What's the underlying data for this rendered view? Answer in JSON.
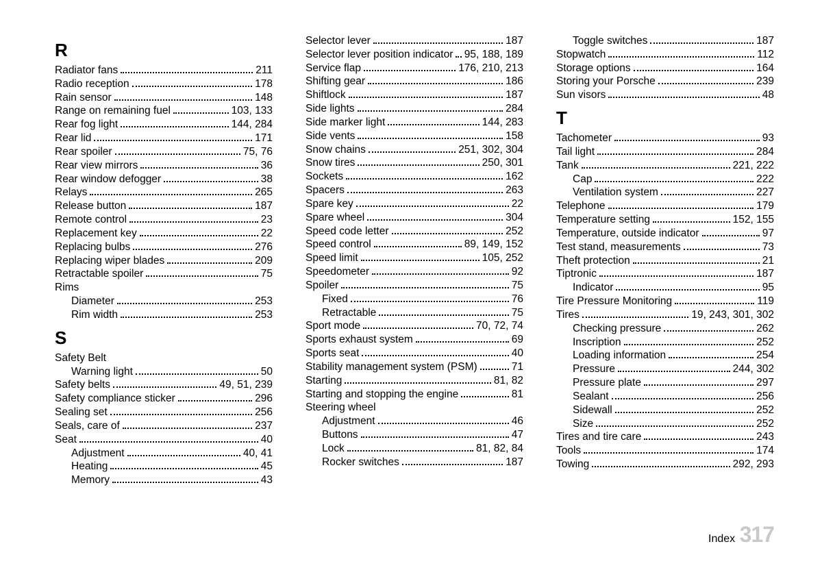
{
  "page": {
    "footer_label": "Index",
    "page_number": "317"
  },
  "columns": [
    {
      "blocks": [
        {
          "type": "letter",
          "text": "R"
        },
        {
          "type": "entry",
          "label": "Radiator fans",
          "pages": "211"
        },
        {
          "type": "entry",
          "label": "Radio reception",
          "pages": "178"
        },
        {
          "type": "entry",
          "label": "Rain sensor",
          "pages": "148"
        },
        {
          "type": "entry",
          "label": "Range on remaining fuel",
          "pages": "103, 133"
        },
        {
          "type": "entry",
          "label": "Rear fog light",
          "pages": "144, 284"
        },
        {
          "type": "entry",
          "label": "Rear lid",
          "pages": "171"
        },
        {
          "type": "entry",
          "label": "Rear spoiler",
          "pages": "75, 76"
        },
        {
          "type": "entry",
          "label": "Rear view mirrors",
          "pages": "36"
        },
        {
          "type": "entry",
          "label": "Rear window defogger",
          "pages": "38"
        },
        {
          "type": "entry",
          "label": "Relays",
          "pages": "265"
        },
        {
          "type": "entry",
          "label": "Release button",
          "pages": "187"
        },
        {
          "type": "entry",
          "label": "Remote control",
          "pages": "23"
        },
        {
          "type": "entry",
          "label": "Replacement key",
          "pages": "22"
        },
        {
          "type": "entry",
          "label": "Replacing bulbs",
          "pages": "276"
        },
        {
          "type": "entry",
          "label": "Replacing wiper blades",
          "pages": "209"
        },
        {
          "type": "entry",
          "label": "Retractable spoiler",
          "pages": "75"
        },
        {
          "type": "heading",
          "label": "Rims"
        },
        {
          "type": "entry",
          "sub": true,
          "label": "Diameter",
          "pages": "253"
        },
        {
          "type": "entry",
          "sub": true,
          "label": "Rim width",
          "pages": "253"
        },
        {
          "type": "letter",
          "text": "S"
        },
        {
          "type": "heading",
          "label": "Safety Belt"
        },
        {
          "type": "entry",
          "sub": true,
          "label": "Warning light",
          "pages": "50"
        },
        {
          "type": "entry",
          "label": "Safety belts",
          "pages": "49, 51, 239"
        },
        {
          "type": "entry",
          "label": "Safety compliance sticker",
          "pages": "296"
        },
        {
          "type": "entry",
          "label": "Sealing set",
          "pages": "256"
        },
        {
          "type": "entry",
          "label": "Seals, care of",
          "pages": "237"
        },
        {
          "type": "entry",
          "label": "Seat",
          "pages": "40"
        },
        {
          "type": "entry",
          "sub": true,
          "label": "Adjustment",
          "pages": "40, 41"
        },
        {
          "type": "entry",
          "sub": true,
          "label": "Heating",
          "pages": "45"
        },
        {
          "type": "entry",
          "sub": true,
          "label": "Memory",
          "pages": "43"
        }
      ]
    },
    {
      "blocks": [
        {
          "type": "entry",
          "label": "Selector lever",
          "pages": "187"
        },
        {
          "type": "entry",
          "label": "Selector lever position indicator",
          "pages": "95, 188, 189"
        },
        {
          "type": "entry",
          "label": "Service flap",
          "pages": "176, 210, 213"
        },
        {
          "type": "entry",
          "label": "Shifting gear",
          "pages": "186"
        },
        {
          "type": "entry",
          "label": "Shiftlock",
          "pages": "187"
        },
        {
          "type": "entry",
          "label": "Side lights",
          "pages": "284"
        },
        {
          "type": "entry",
          "label": "Side marker light",
          "pages": "144, 283"
        },
        {
          "type": "entry",
          "label": "Side vents",
          "pages": "158"
        },
        {
          "type": "entry",
          "label": "Snow chains",
          "pages": "251, 302, 304"
        },
        {
          "type": "entry",
          "label": "Snow tires",
          "pages": "250, 301"
        },
        {
          "type": "entry",
          "label": "Sockets",
          "pages": "162"
        },
        {
          "type": "entry",
          "label": "Spacers",
          "pages": "263"
        },
        {
          "type": "entry",
          "label": "Spare key",
          "pages": "22"
        },
        {
          "type": "entry",
          "label": "Spare wheel",
          "pages": "304"
        },
        {
          "type": "entry",
          "label": "Speed code letter",
          "pages": "252"
        },
        {
          "type": "entry",
          "label": "Speed control",
          "pages": "89, 149, 152"
        },
        {
          "type": "entry",
          "label": "Speed limit",
          "pages": "105, 252"
        },
        {
          "type": "entry",
          "label": "Speedometer",
          "pages": "92"
        },
        {
          "type": "entry",
          "label": "Spoiler",
          "pages": "75"
        },
        {
          "type": "entry",
          "sub": true,
          "label": "Fixed",
          "pages": "76"
        },
        {
          "type": "entry",
          "sub": true,
          "label": "Retractable",
          "pages": "75"
        },
        {
          "type": "entry",
          "label": "Sport mode",
          "pages": "70, 72, 74"
        },
        {
          "type": "entry",
          "label": "Sports exhaust system",
          "pages": "69"
        },
        {
          "type": "entry",
          "label": "Sports seat",
          "pages": "40"
        },
        {
          "type": "entry",
          "label": "Stability management system (PSM)",
          "pages": "71"
        },
        {
          "type": "entry",
          "label": "Starting",
          "pages": "81, 82"
        },
        {
          "type": "entry",
          "label": "Starting and stopping the engine",
          "pages": "81"
        },
        {
          "type": "heading",
          "label": "Steering wheel"
        },
        {
          "type": "entry",
          "sub": true,
          "label": "Adjustment",
          "pages": "46"
        },
        {
          "type": "entry",
          "sub": true,
          "label": "Buttons",
          "pages": "47"
        },
        {
          "type": "entry",
          "sub": true,
          "label": "Lock",
          "pages": "81, 82, 84"
        },
        {
          "type": "entry",
          "sub": true,
          "label": "Rocker switches",
          "pages": "187"
        }
      ]
    },
    {
      "blocks": [
        {
          "type": "entry",
          "sub": true,
          "label": "Toggle switches",
          "pages": "187"
        },
        {
          "type": "entry",
          "label": "Stopwatch",
          "pages": "112"
        },
        {
          "type": "entry",
          "label": "Storage options",
          "pages": "164"
        },
        {
          "type": "entry",
          "label": "Storing your Porsche",
          "pages": "239"
        },
        {
          "type": "entry",
          "label": "Sun visors",
          "pages": "48"
        },
        {
          "type": "letter",
          "text": "T"
        },
        {
          "type": "entry",
          "label": "Tachometer",
          "pages": "93"
        },
        {
          "type": "entry",
          "label": "Tail light",
          "pages": "284"
        },
        {
          "type": "entry",
          "label": "Tank",
          "pages": "221, 222"
        },
        {
          "type": "entry",
          "sub": true,
          "label": "Cap",
          "pages": "222"
        },
        {
          "type": "entry",
          "sub": true,
          "label": "Ventilation system",
          "pages": "227"
        },
        {
          "type": "entry",
          "label": "Telephone",
          "pages": "179"
        },
        {
          "type": "entry",
          "label": "Temperature setting",
          "pages": "152, 155"
        },
        {
          "type": "entry",
          "label": "Temperature, outside indicator",
          "pages": "97"
        },
        {
          "type": "entry",
          "label": "Test stand, measurements",
          "pages": "73"
        },
        {
          "type": "entry",
          "label": "Theft protection",
          "pages": "21"
        },
        {
          "type": "entry",
          "label": "Tiptronic",
          "pages": "187"
        },
        {
          "type": "entry",
          "sub": true,
          "label": "Indicator",
          "pages": "95"
        },
        {
          "type": "entry",
          "label": "Tire Pressure Monitoring",
          "pages": "119"
        },
        {
          "type": "entry",
          "label": "Tires",
          "pages": "19, 243, 301, 302"
        },
        {
          "type": "entry",
          "sub": true,
          "label": "Checking pressure",
          "pages": "262"
        },
        {
          "type": "entry",
          "sub": true,
          "label": "Inscription",
          "pages": "252"
        },
        {
          "type": "entry",
          "sub": true,
          "label": "Loading information",
          "pages": "254"
        },
        {
          "type": "entry",
          "sub": true,
          "label": "Pressure",
          "pages": "244, 302"
        },
        {
          "type": "entry",
          "sub": true,
          "label": "Pressure plate",
          "pages": "297"
        },
        {
          "type": "entry",
          "sub": true,
          "label": "Sealant",
          "pages": "256"
        },
        {
          "type": "entry",
          "sub": true,
          "label": "Sidewall",
          "pages": "252"
        },
        {
          "type": "entry",
          "sub": true,
          "label": "Size",
          "pages": "252"
        },
        {
          "type": "entry",
          "label": "Tires and tire care",
          "pages": "243"
        },
        {
          "type": "entry",
          "label": "Tools",
          "pages": "174"
        },
        {
          "type": "entry",
          "label": "Towing",
          "pages": "292, 293"
        }
      ]
    }
  ]
}
